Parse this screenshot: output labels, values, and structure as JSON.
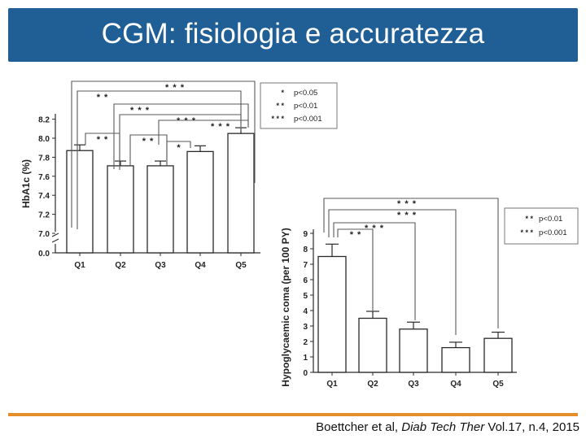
{
  "header": {
    "title": "CGM: fisiologia e accuratezza",
    "bg_color": "#1f5f96"
  },
  "footer": {
    "line_color": "#e58f2a",
    "citation_prefix": "Boettcher et al, ",
    "citation_journal": "Diab Tech Ther",
    "citation_suffix": " Vol.17, n.4, 2015"
  },
  "chart_data": [
    {
      "type": "bar",
      "categories": [
        "Q1",
        "Q2",
        "Q3",
        "Q4",
        "Q5"
      ],
      "values": [
        7.87,
        7.71,
        7.71,
        7.86,
        8.05
      ],
      "errors": [
        0.06,
        0.05,
        0.05,
        0.06,
        0.06
      ],
      "ylabel": "HbA1c (%)",
      "yticks": [
        "0.0",
        "7.0",
        "7.2",
        "7.4",
        "7.6",
        "7.8",
        "8.0",
        "8.2"
      ],
      "axis_break": true,
      "legend": [
        {
          "stars": "*",
          "label": "p<0.05"
        },
        {
          "stars": "* *",
          "label": "p<0.01"
        },
        {
          "stars": "* * *",
          "label": "p<0.001"
        }
      ],
      "significance": [
        {
          "stars": "* * *"
        },
        {
          "stars": "* *"
        },
        {
          "stars": "* * *"
        },
        {
          "stars": "* * *"
        },
        {
          "stars": "* * *"
        },
        {
          "stars": "* *"
        },
        {
          "stars": "* *"
        },
        {
          "stars": "*"
        }
      ]
    },
    {
      "type": "bar",
      "categories": [
        "Q1",
        "Q2",
        "Q3",
        "Q4",
        "Q5"
      ],
      "values": [
        7.5,
        3.5,
        2.8,
        1.6,
        2.2
      ],
      "errors": [
        0.8,
        0.45,
        0.45,
        0.35,
        0.4
      ],
      "ylabel": "Hypoglycaemic coma (per 100 PY)",
      "ylim": [
        0,
        9
      ],
      "yticks": [
        "0",
        "1",
        "2",
        "3",
        "4",
        "5",
        "6",
        "7",
        "8",
        "9"
      ],
      "legend": [
        {
          "stars": "* *",
          "label": "p<0.01"
        },
        {
          "stars": "* * *",
          "label": "p<0.001"
        }
      ],
      "significance": [
        {
          "stars": "* * *"
        },
        {
          "stars": "* * *"
        },
        {
          "stars": "* * *"
        },
        {
          "stars": "* *"
        }
      ]
    }
  ]
}
